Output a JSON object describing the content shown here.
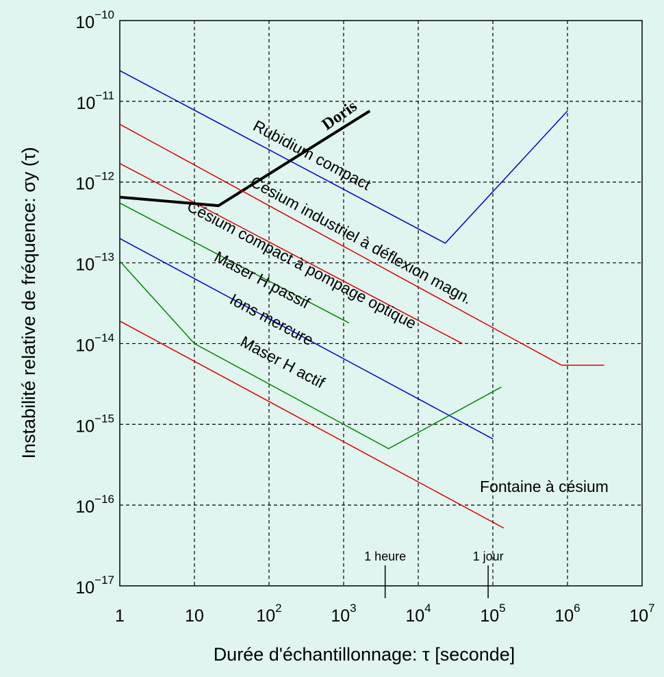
{
  "chart_data": {
    "type": "line",
    "xlabel": "Durée d'échantillonnage: τ [seconde]",
    "ylabel": "Instabilité relative de fréquence: σy (τ)",
    "xscale": "log",
    "yscale": "log",
    "grid": true,
    "xlim": [
      1,
      10000000
    ],
    "ylim": [
      1e-17,
      1e-10
    ],
    "xticks": [
      1,
      10,
      {
        "value": 100,
        "label": "10",
        "exponent": "2"
      },
      {
        "value": 1000,
        "label": "10",
        "exponent": "3"
      },
      {
        "value": 10000,
        "label": "10",
        "exponent": "4"
      },
      {
        "value": 100000,
        "label": "10",
        "exponent": "5"
      },
      {
        "value": 1000000,
        "label": "10",
        "exponent": "6"
      },
      {
        "value": 10000000,
        "label": "10",
        "exponent": "7"
      }
    ],
    "yticks": [
      {
        "value": 1e-17,
        "label": "10",
        "exponent": "−17"
      },
      {
        "value": 1e-16,
        "label": "10",
        "exponent": "−16"
      },
      {
        "value": 1e-15,
        "label": "10",
        "exponent": "−15"
      },
      {
        "value": 1e-14,
        "label": "10",
        "exponent": "−14"
      },
      {
        "value": 1e-13,
        "label": "10",
        "exponent": "−13"
      },
      {
        "value": 1e-12,
        "label": "10",
        "exponent": "−12"
      },
      {
        "value": 1e-11,
        "label": "10",
        "exponent": "−11"
      },
      {
        "value": 1e-10,
        "label": "10",
        "exponent": "−10"
      }
    ],
    "series": [
      {
        "name": "Rubidium compact",
        "color": "#0000cc",
        "x": [
          1,
          23000,
          1000000
        ],
        "values": [
          2.4e-11,
          1.75e-13,
          7.6e-12
        ]
      },
      {
        "name": "Doris",
        "color": "#000000",
        "x": [
          1,
          21,
          2240
        ],
        "values": [
          6.5e-13,
          5.1e-13,
          7.6e-12
        ]
      },
      {
        "name": "Césium industriel à déflexion magn.",
        "color": "#dd0000",
        "x": [
          1,
          830000,
          3100000
        ],
        "values": [
          5.2e-12,
          5.4e-15,
          5.4e-15
        ]
      },
      {
        "name": "Césium compact à pompage optique",
        "color": "#dd0000",
        "x": [
          1,
          39000
        ],
        "values": [
          1.7e-12,
          1e-14
        ]
      },
      {
        "name": "Maser H passif",
        "color": "#008800",
        "x": [
          1,
          1180
        ],
        "values": [
          5.5e-13,
          1.8e-14
        ]
      },
      {
        "name": "Ions mercure",
        "color": "#0000cc",
        "x": [
          1,
          100000
        ],
        "values": [
          2e-13,
          6.6e-16
        ]
      },
      {
        "name": "Maser H actif",
        "color": "#008800",
        "x": [
          1,
          10,
          4000,
          130000
        ],
        "values": [
          1.05e-13,
          1e-14,
          5e-16,
          2.9e-15
        ]
      },
      {
        "name": "Fontaine à césium",
        "color": "#dd0000",
        "x": [
          1,
          140000
        ],
        "values": [
          1.9e-14,
          5.2e-17
        ]
      }
    ],
    "annotations": [
      {
        "text": "1 heure",
        "x": 3600
      },
      {
        "text": "1 jour",
        "x": 86400
      }
    ]
  }
}
